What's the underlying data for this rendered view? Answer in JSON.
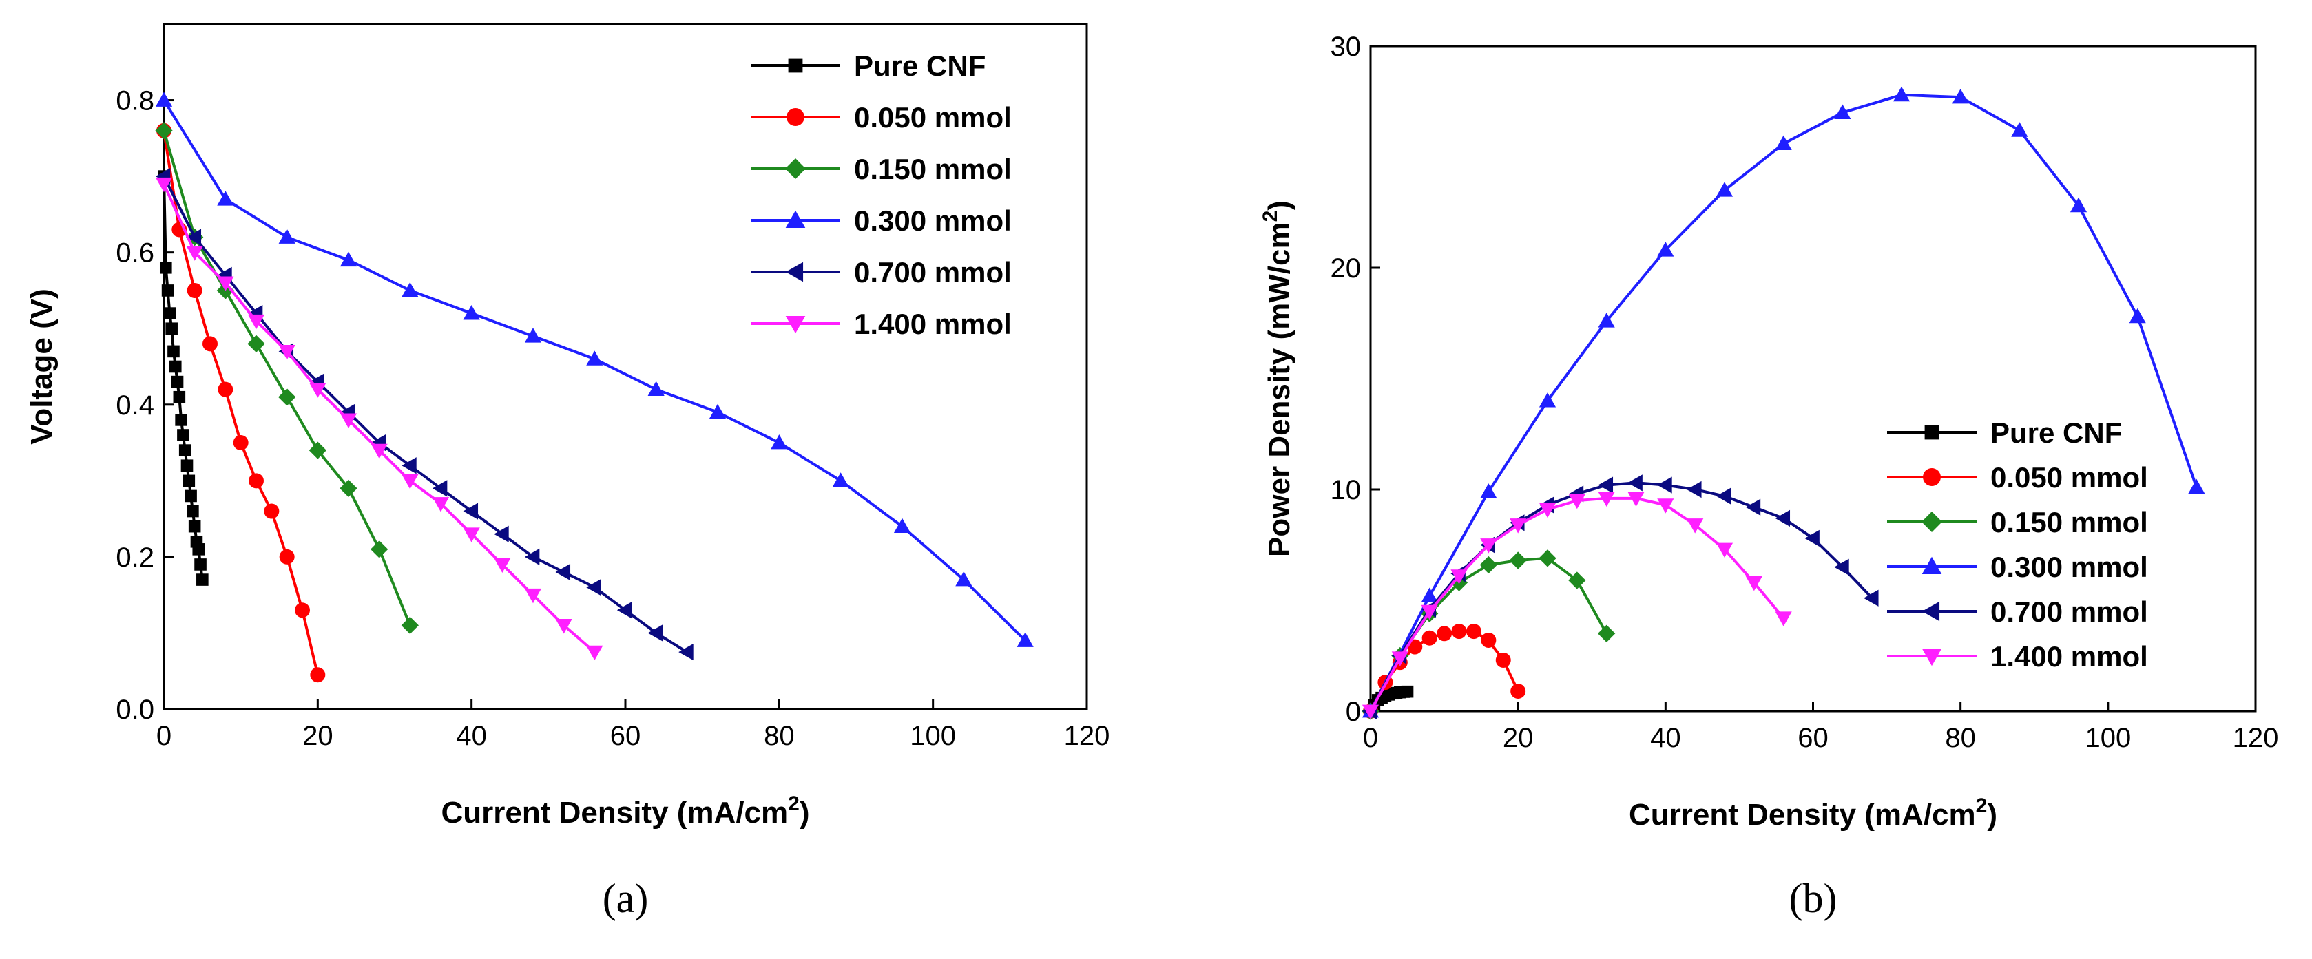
{
  "series_colors": {
    "Pure CNF": "#000000",
    "0.050 mmol": "#ff0000",
    "0.150 mmol": "#1f8a1f",
    "0.300 mmol": "#1f1fff",
    "0.700 mmol": "#0a0a80",
    "1.400 mmol": "#ff1fff"
  },
  "series_markers": {
    "Pure CNF": "square",
    "0.050 mmol": "circle",
    "0.150 mmol": "diamond",
    "0.300 mmol": "triangle-up",
    "0.700 mmol": "triangle-left",
    "1.400 mmol": "triangle-down"
  },
  "chart_data": [
    {
      "type": "line",
      "panel_label": "(a)",
      "title": "",
      "xlabel": "Current Density (mA/cm",
      "xlabel_sup": "2",
      "xlabel_end": ")",
      "ylabel": "Voltage (V)",
      "xlim": [
        0,
        120
      ],
      "ylim": [
        0,
        0.9
      ],
      "xticks": [
        "0",
        "20",
        "40",
        "60",
        "80",
        "100",
        "120"
      ],
      "yticks": [
        "0.0",
        "0.2",
        "0.4",
        "0.6",
        "0.8"
      ],
      "legend_position": "top-right",
      "series": [
        {
          "name": "Pure CNF",
          "x": [
            0,
            0.25,
            0.5,
            0.75,
            1.0,
            1.25,
            1.5,
            1.75,
            2.0,
            2.25,
            2.5,
            2.75,
            3.0,
            3.25,
            3.5,
            3.75,
            4.0,
            4.25,
            4.5,
            4.75,
            5.0
          ],
          "y": [
            0.7,
            0.58,
            0.55,
            0.52,
            0.5,
            0.47,
            0.45,
            0.43,
            0.41,
            0.38,
            0.36,
            0.34,
            0.32,
            0.3,
            0.28,
            0.26,
            0.24,
            0.22,
            0.21,
            0.19,
            0.17
          ]
        },
        {
          "name": "0.050 mmol",
          "x": [
            0,
            2,
            4,
            6,
            8,
            10,
            12,
            14,
            16,
            18,
            20
          ],
          "y": [
            0.76,
            0.63,
            0.55,
            0.48,
            0.42,
            0.35,
            0.3,
            0.26,
            0.2,
            0.13,
            0.045
          ]
        },
        {
          "name": "0.150 mmol",
          "x": [
            0,
            4,
            8,
            12,
            16,
            20,
            24,
            28,
            32
          ],
          "y": [
            0.76,
            0.62,
            0.55,
            0.48,
            0.41,
            0.34,
            0.29,
            0.21,
            0.11
          ]
        },
        {
          "name": "0.300 mmol",
          "x": [
            0,
            8,
            16,
            24,
            32,
            40,
            48,
            56,
            64,
            72,
            80,
            88,
            96,
            104,
            112
          ],
          "y": [
            0.8,
            0.67,
            0.62,
            0.59,
            0.55,
            0.52,
            0.49,
            0.46,
            0.42,
            0.39,
            0.35,
            0.3,
            0.24,
            0.17,
            0.09
          ]
        },
        {
          "name": "0.700 mmol",
          "x": [
            0,
            4,
            8,
            12,
            16,
            20,
            24,
            28,
            32,
            36,
            40,
            44,
            48,
            52,
            56,
            60,
            64,
            68
          ],
          "y": [
            0.7,
            0.62,
            0.57,
            0.52,
            0.47,
            0.43,
            0.39,
            0.35,
            0.32,
            0.29,
            0.26,
            0.23,
            0.2,
            0.18,
            0.16,
            0.13,
            0.1,
            0.075
          ]
        },
        {
          "name": "1.400 mmol",
          "x": [
            0,
            4,
            8,
            12,
            16,
            20,
            24,
            28,
            32,
            36,
            40,
            44,
            48,
            52,
            56
          ],
          "y": [
            0.69,
            0.6,
            0.56,
            0.51,
            0.47,
            0.42,
            0.38,
            0.34,
            0.3,
            0.27,
            0.23,
            0.19,
            0.15,
            0.11,
            0.075
          ]
        }
      ]
    },
    {
      "type": "line",
      "panel_label": "(b)",
      "title": "",
      "xlabel": "Current Density (mA/cm",
      "xlabel_sup": "2",
      "xlabel_end": ")",
      "ylabel": "Power Density (mW/cm",
      "ylabel_sup": "2",
      "ylabel_end": ")",
      "xlim": [
        0,
        120
      ],
      "ylim": [
        0,
        30
      ],
      "xticks": [
        "0",
        "20",
        "40",
        "60",
        "80",
        "100",
        "120"
      ],
      "yticks": [
        "0",
        "10",
        "20",
        "30"
      ],
      "legend_position": "lower-right",
      "series": [
        {
          "name": "Pure CNF",
          "x": [
            0,
            0.5,
            1.0,
            1.5,
            2.0,
            2.5,
            3.0,
            3.5,
            4.0,
            4.5,
            5.0
          ],
          "y": [
            0,
            0.28,
            0.5,
            0.6,
            0.7,
            0.75,
            0.8,
            0.82,
            0.85,
            0.87,
            0.88
          ]
        },
        {
          "name": "0.050 mmol",
          "x": [
            0,
            2,
            4,
            6,
            8,
            10,
            12,
            14,
            16,
            18,
            20
          ],
          "y": [
            0,
            1.3,
            2.2,
            2.9,
            3.3,
            3.5,
            3.6,
            3.6,
            3.2,
            2.3,
            0.9
          ]
        },
        {
          "name": "0.150 mmol",
          "x": [
            0,
            4,
            8,
            12,
            16,
            20,
            24,
            28,
            32
          ],
          "y": [
            0,
            2.5,
            4.4,
            5.8,
            6.6,
            6.8,
            6.9,
            5.9,
            3.5
          ]
        },
        {
          "name": "0.300 mmol",
          "x": [
            0,
            8,
            16,
            24,
            32,
            40,
            48,
            56,
            64,
            72,
            80,
            88,
            96,
            104,
            112
          ],
          "y": [
            0,
            5.2,
            9.9,
            14.0,
            17.6,
            20.8,
            23.5,
            25.6,
            27.0,
            27.8,
            27.7,
            26.2,
            22.8,
            17.8,
            10.1
          ]
        },
        {
          "name": "0.700 mmol",
          "x": [
            0,
            4,
            8,
            12,
            16,
            20,
            24,
            28,
            32,
            36,
            40,
            44,
            48,
            52,
            56,
            60,
            64,
            68
          ],
          "y": [
            0,
            2.5,
            4.6,
            6.2,
            7.5,
            8.5,
            9.3,
            9.8,
            10.2,
            10.3,
            10.2,
            10.0,
            9.7,
            9.2,
            8.7,
            7.8,
            6.5,
            5.1
          ]
        },
        {
          "name": "1.400 mmol",
          "x": [
            0,
            4,
            8,
            12,
            16,
            20,
            24,
            28,
            32,
            36,
            40,
            44,
            48,
            52,
            56
          ],
          "y": [
            0,
            2.4,
            4.5,
            6.1,
            7.5,
            8.4,
            9.1,
            9.5,
            9.6,
            9.6,
            9.3,
            8.4,
            7.3,
            5.8,
            4.2
          ]
        }
      ]
    }
  ]
}
